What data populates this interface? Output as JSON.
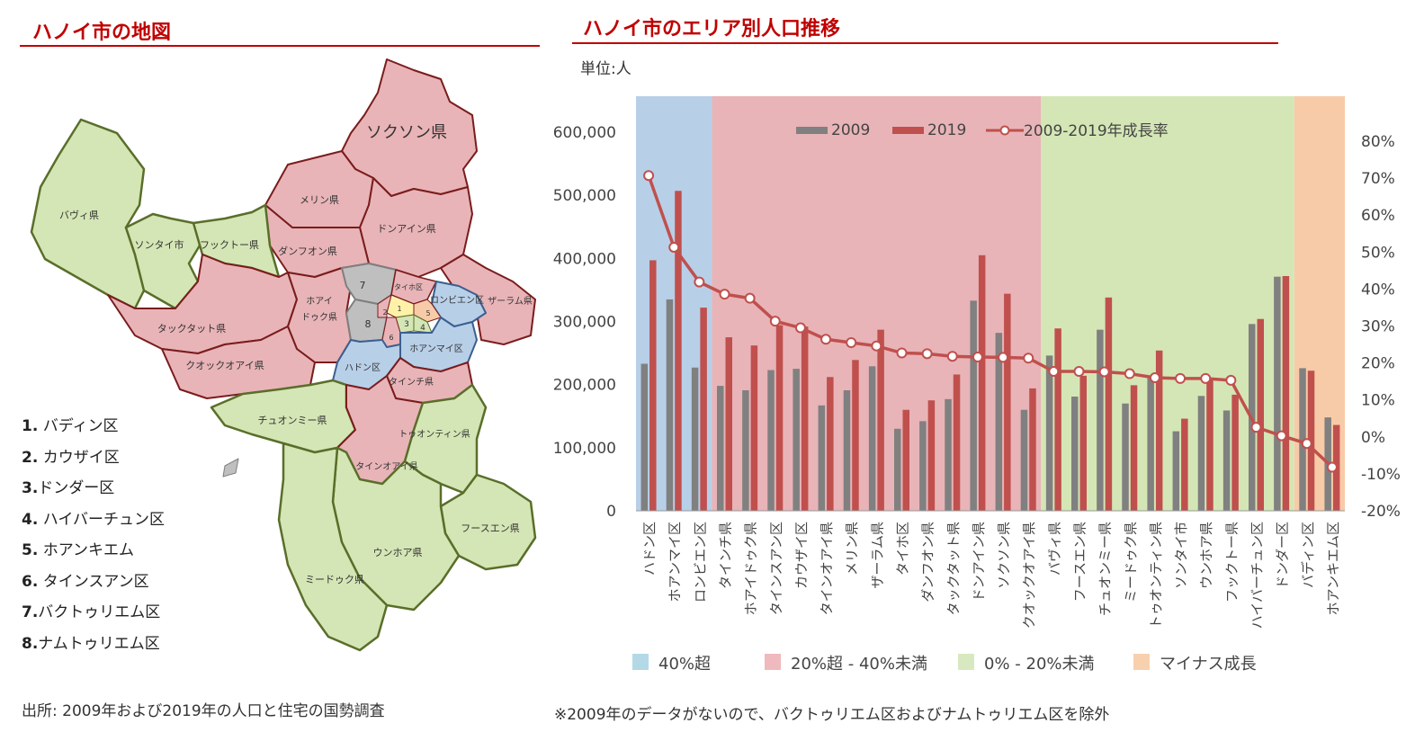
{
  "map_panel": {
    "title": "ハノイ市の地図",
    "legend": [
      {
        "num": "1.",
        "name": " バディン区"
      },
      {
        "num": "2.",
        "name": " カウザイ区"
      },
      {
        "num": "3.",
        "name": "ドンダー区"
      },
      {
        "num": "4.",
        "name": " ハイバーチュン区"
      },
      {
        "num": "5.",
        "name": " ホアンキエム"
      },
      {
        "num": "6.",
        "name": " タインスアン区"
      },
      {
        "num": "7.",
        "name": "バクトゥリエム区"
      },
      {
        "num": "8.",
        "name": "ナムトゥリエム区"
      }
    ],
    "labels": {
      "soc_son": "ソクソン県",
      "me_linh": "メリン県",
      "ba_vi": "バヴィ県",
      "son_tay": "ソンタイ市",
      "phuc_tho": "フックトー県",
      "dong_anh": "ドンアイン県",
      "dan_phuong": "ダンフオン県",
      "hoai_duc_1": "ホアイ",
      "hoai_duc_2": "ドゥク県",
      "tay_ho": "タイホ区",
      "long_bien": "ロンビエン区",
      "gia_lam": "ザーラム県",
      "thach_that": "タックタット県",
      "quoc_oai": "クオックオアイ県",
      "hoang_mai": "ホアンマイ区",
      "ha_dong": "ハドン区",
      "thanh_tri": "タインチ県",
      "chuong_my": "チュオンミー県",
      "thanh_oai": "タインオアイ県",
      "thuong_tin": "トゥオンティン県",
      "phu_xuyen": "フースエン県",
      "ung_hoa": "ウンホア県",
      "my_duc": "ミードゥク県",
      "n7": "7",
      "n8": "8",
      "n1": "1",
      "n2": "2",
      "n3": "3",
      "n4": "4",
      "n5": "5",
      "n6": "6"
    },
    "colors": {
      "pink": "#e8b4b8",
      "green": "#d4e6b5",
      "blue": "#b8cfe8",
      "gray": "#bfbfbf",
      "orange": "#f8cba8",
      "yellow": "#fff2a8"
    }
  },
  "chart_panel": {
    "title": "ハノイ市のエリア別人口推移",
    "unit": "単位:人",
    "footnote": "※2009年のデータがないので、バクトゥリエム区およびナムトゥリエム区を除外"
  },
  "source": "出所: 2009年および2019年の人口と住宅の国勢調査",
  "chart_data": {
    "type": "bar",
    "categories": [
      "ハドン区",
      "ホアンマイ区",
      "ロンビエン区",
      "タインチ県",
      "ホアイドゥク県",
      "タインスアン区",
      "カウザイ区",
      "タインオアイ県",
      "メリン県",
      "ザーラム県",
      "タイホ区",
      "ダンフオン県",
      "タックタット県",
      "ドンアイン県",
      "ソクソン県",
      "クオックオアイ県",
      "バヴィ県",
      "フースエン県",
      "チュオンミー県",
      "ミードゥク県",
      "トゥオンティン県",
      "ソンタイ市",
      "ウンホア県",
      "フックトー県",
      "ハイバーチュン区",
      "ドンダー区",
      "バディン区",
      "ホアンキエム区"
    ],
    "series": [
      {
        "name": "2009",
        "type": "bar",
        "axis": "left",
        "color": "#808080",
        "values": [
          233000,
          335000,
          227000,
          198000,
          191000,
          223000,
          225000,
          167000,
          191000,
          229000,
          130000,
          142000,
          177000,
          333000,
          282000,
          160000,
          246000,
          181000,
          287000,
          170000,
          214000,
          126000,
          182000,
          159000,
          296000,
          371000,
          226000,
          148000
        ]
      },
      {
        "name": "2019",
        "type": "bar",
        "axis": "left",
        "color": "#c0504d",
        "values": [
          397000,
          507000,
          322000,
          275000,
          262000,
          294000,
          292000,
          212000,
          239000,
          287000,
          160000,
          175000,
          216000,
          405000,
          344000,
          194000,
          289000,
          214000,
          338000,
          199000,
          254000,
          146000,
          211000,
          184000,
          304000,
          372000,
          222000,
          136000
        ]
      },
      {
        "name": "2009-2019年成長率",
        "type": "line",
        "axis": "right",
        "color": "#c0504d",
        "values": [
          70.7,
          51.3,
          41.9,
          38.6,
          37.5,
          31.3,
          29.5,
          26.4,
          25.5,
          24.6,
          22.7,
          22.5,
          21.8,
          21.6,
          21.5,
          21.3,
          17.7,
          17.7,
          17.6,
          17.1,
          16.0,
          15.8,
          15.8,
          15.3,
          2.6,
          0.3,
          -1.8,
          -8.2
        ]
      }
    ],
    "ylim_left": [
      0,
      600000
    ],
    "yticks_left": [
      "0",
      "100,000",
      "200,000",
      "300,000",
      "400,000",
      "500,000",
      "600,000"
    ],
    "ylim_right": [
      -20,
      80
    ],
    "yticks_right": [
      "-20%",
      "-10%",
      "0%",
      "10%",
      "20%",
      "30%",
      "40%",
      "50%",
      "60%",
      "70%",
      "80%"
    ],
    "bands": [
      {
        "label": "40%超",
        "from": 0,
        "to": 2,
        "color": "#b8cfe8",
        "legend_color": "#b3d9e6"
      },
      {
        "label": "20%超 - 40%未満",
        "from": 3,
        "to": 15,
        "color": "#e8b4b8",
        "legend_color": "#f0b9bd"
      },
      {
        "label": "0% - 20%未満",
        "from": 16,
        "to": 25,
        "color": "#d4e6b5",
        "legend_color": "#d8e8c0"
      },
      {
        "label": "マイナス成長",
        "from": 26,
        "to": 27,
        "color": "#f8cba8",
        "legend_color": "#f9d0ae"
      }
    ],
    "legend_placement": "top"
  }
}
